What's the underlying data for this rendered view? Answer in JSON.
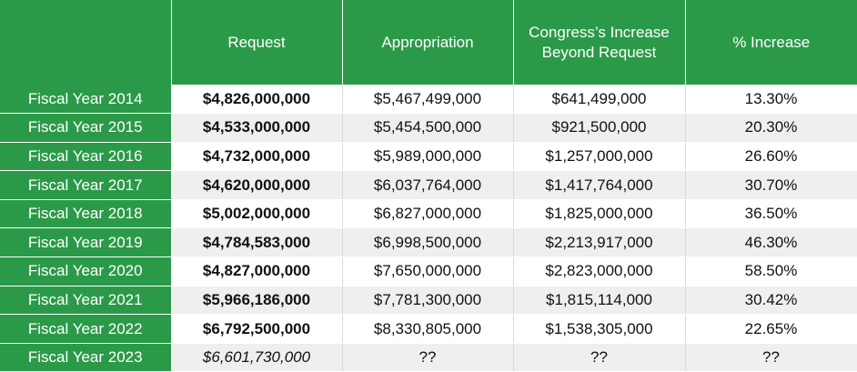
{
  "chart_data": {
    "type": "table",
    "columns": [
      "",
      "Request",
      "Appropriation",
      "Congress’s Increase Beyond Request",
      "% Increase"
    ],
    "rows": [
      {
        "year": "Fiscal Year 2014",
        "request": "$4,826,000,000",
        "appropriation": "$5,467,499,000",
        "increase": "$641,499,000",
        "pct": "13.30%"
      },
      {
        "year": "Fiscal Year 2015",
        "request": "$4,533,000,000",
        "appropriation": "$5,454,500,000",
        "increase": "$921,500,000",
        "pct": "20.30%"
      },
      {
        "year": "Fiscal Year 2016",
        "request": "$4,732,000,000",
        "appropriation": "$5,989,000,000",
        "increase": "$1,257,000,000",
        "pct": "26.60%"
      },
      {
        "year": "Fiscal Year 2017",
        "request": "$4,620,000,000",
        "appropriation": "$6,037,764,000",
        "increase": "$1,417,764,000",
        "pct": "30.70%"
      },
      {
        "year": "Fiscal Year 2018",
        "request": "$5,002,000,000",
        "appropriation": "$6,827,000,000",
        "increase": "$1,825,000,000",
        "pct": "36.50%"
      },
      {
        "year": "Fiscal Year 2019",
        "request": "$4,784,583,000",
        "appropriation": "$6,998,500,000",
        "increase": "$2,213,917,000",
        "pct": "46.30%"
      },
      {
        "year": "Fiscal Year 2020",
        "request": "$4,827,000,000",
        "appropriation": "$7,650,000,000",
        "increase": "$2,823,000,000",
        "pct": "58.50%"
      },
      {
        "year": "Fiscal Year 2021",
        "request": "$5,966,186,000",
        "appropriation": "$7,781,300,000",
        "increase": "$1,815,114,000",
        "pct": "30.42%"
      },
      {
        "year": "Fiscal Year 2022",
        "request": "$6,792,500,000",
        "appropriation": "$8,330,805,000",
        "increase": "$1,538,305,000",
        "pct": "22.65%"
      },
      {
        "year": "Fiscal Year 2023",
        "request": "$6,601,730,000",
        "appropriation": "??",
        "increase": "??",
        "pct": "??",
        "request_italic": true
      }
    ]
  }
}
